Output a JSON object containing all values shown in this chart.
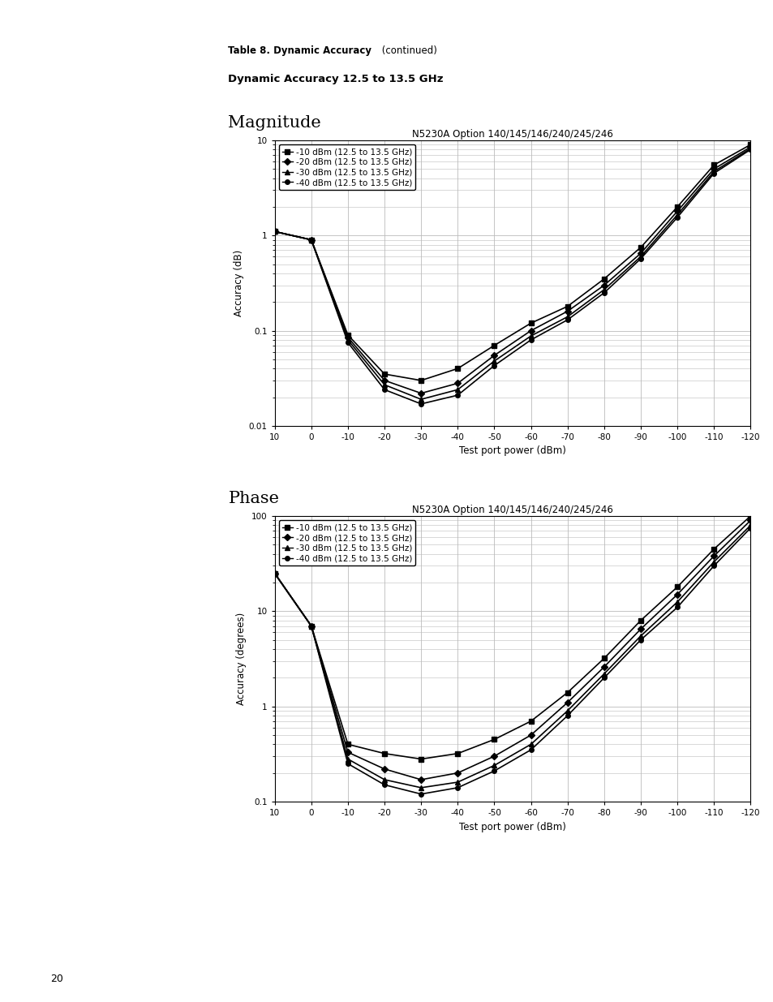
{
  "table_label_bold": "Table 8. Dynamic Accuracy",
  "table_label_normal": " (continued)",
  "subtitle": "Dynamic Accuracy 12.5 to 13.5 GHz",
  "mag_title": "Magnitude",
  "phase_title": "Phase",
  "chart_title": "N5230A Option 140/145/146/240/245/246",
  "xlabel": "Test port power (dBm)",
  "mag_ylabel": "Accuracy (dB)",
  "phase_ylabel": "Accuracy (degrees)",
  "x_ticks": [
    10,
    0,
    -10,
    -20,
    -30,
    -40,
    -50,
    -60,
    -70,
    -80,
    -90,
    -100,
    -110,
    -120
  ],
  "legend_entries": [
    "-10 dBm (12.5 to 13.5 GHz)",
    "-20 dBm (12.5 to 13.5 GHz)",
    "-30 dBm (12.5 to 13.5 GHz)",
    "-40 dBm (12.5 to 13.5 GHz)"
  ],
  "markers": [
    "s",
    "D",
    "^",
    "o"
  ],
  "x_data": [
    10,
    0,
    -10,
    -20,
    -30,
    -40,
    -50,
    -60,
    -70,
    -80,
    -90,
    -100,
    -110,
    -120
  ],
  "mag_curves": [
    [
      1.1,
      0.9,
      0.09,
      0.035,
      0.03,
      0.04,
      0.07,
      0.12,
      0.18,
      0.35,
      0.75,
      2.0,
      5.5,
      9.0
    ],
    [
      1.1,
      0.9,
      0.085,
      0.03,
      0.022,
      0.028,
      0.055,
      0.1,
      0.16,
      0.3,
      0.65,
      1.8,
      5.0,
      8.5
    ],
    [
      1.1,
      0.9,
      0.08,
      0.027,
      0.019,
      0.024,
      0.048,
      0.088,
      0.14,
      0.27,
      0.6,
      1.65,
      4.7,
      8.2
    ],
    [
      1.1,
      0.9,
      0.075,
      0.024,
      0.017,
      0.021,
      0.043,
      0.08,
      0.13,
      0.25,
      0.57,
      1.55,
      4.5,
      8.0
    ]
  ],
  "phase_curves": [
    [
      25.0,
      7.0,
      0.4,
      0.32,
      0.28,
      0.32,
      0.45,
      0.7,
      1.4,
      3.2,
      8.0,
      18.0,
      45.0,
      100.0
    ],
    [
      25.0,
      7.0,
      0.33,
      0.22,
      0.17,
      0.2,
      0.3,
      0.5,
      1.1,
      2.6,
      6.5,
      15.0,
      38.0,
      90.0
    ],
    [
      25.0,
      7.0,
      0.28,
      0.17,
      0.14,
      0.16,
      0.24,
      0.4,
      0.9,
      2.2,
      5.5,
      12.5,
      33.0,
      80.0
    ],
    [
      25.0,
      7.0,
      0.25,
      0.15,
      0.12,
      0.14,
      0.21,
      0.35,
      0.8,
      2.0,
      5.0,
      11.0,
      30.0,
      75.0
    ]
  ],
  "mag_ylim": [
    0.01,
    10
  ],
  "phase_ylim": [
    0.1,
    100
  ],
  "background_color": "#ffffff",
  "grid_color": "#bbbbbb",
  "line_color": "#000000",
  "page_number": "20"
}
